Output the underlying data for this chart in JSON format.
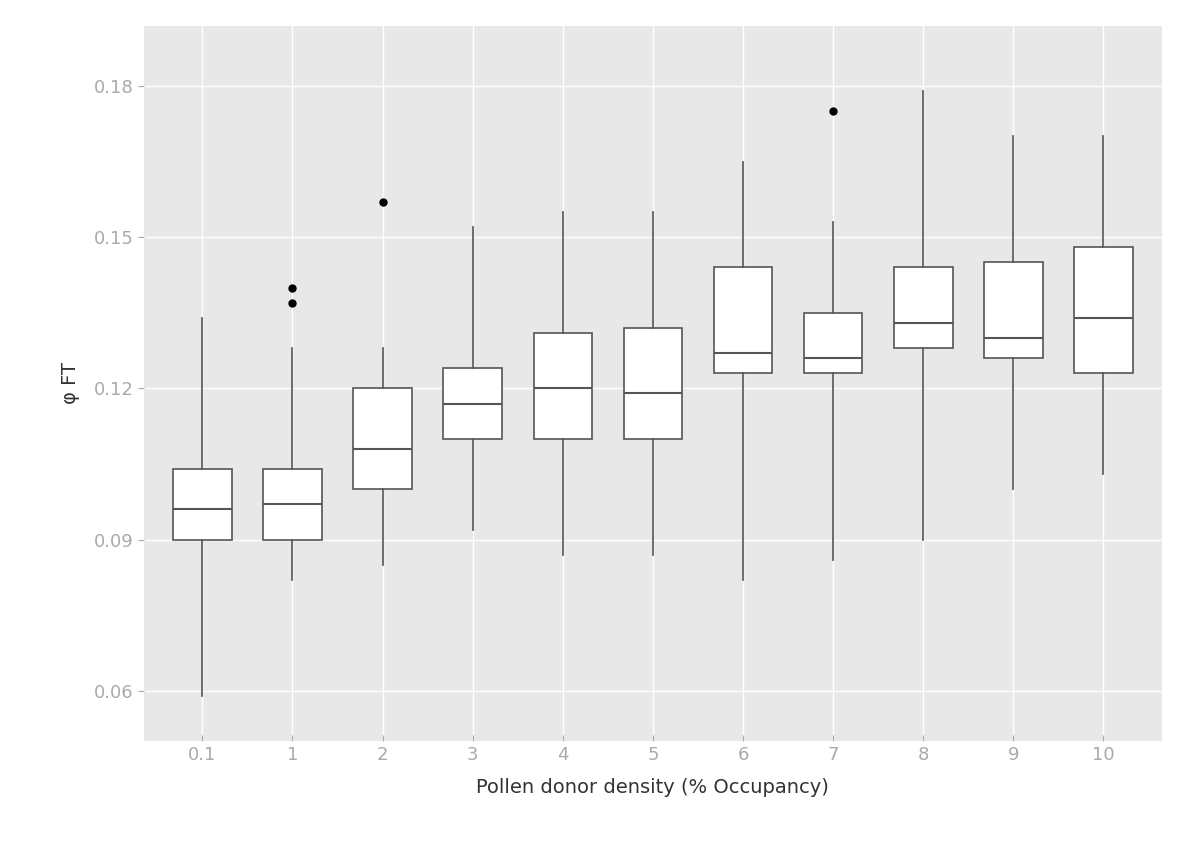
{
  "categories": [
    "0.1",
    "1",
    "2",
    "3",
    "4",
    "5",
    "6",
    "7",
    "8",
    "9",
    "10"
  ],
  "box_stats": [
    {
      "whislo": 0.059,
      "q1": 0.09,
      "med": 0.096,
      "q3": 0.104,
      "whishi": 0.134,
      "fliers": []
    },
    {
      "whislo": 0.082,
      "q1": 0.09,
      "med": 0.097,
      "q3": 0.104,
      "whishi": 0.128,
      "fliers": [
        0.14,
        0.137
      ]
    },
    {
      "whislo": 0.085,
      "q1": 0.1,
      "med": 0.108,
      "q3": 0.12,
      "whishi": 0.128,
      "fliers": [
        0.157
      ]
    },
    {
      "whislo": 0.092,
      "q1": 0.11,
      "med": 0.117,
      "q3": 0.124,
      "whishi": 0.152,
      "fliers": []
    },
    {
      "whislo": 0.087,
      "q1": 0.11,
      "med": 0.12,
      "q3": 0.131,
      "whishi": 0.155,
      "fliers": []
    },
    {
      "whislo": 0.087,
      "q1": 0.11,
      "med": 0.119,
      "q3": 0.132,
      "whishi": 0.155,
      "fliers": []
    },
    {
      "whislo": 0.082,
      "q1": 0.123,
      "med": 0.127,
      "q3": 0.144,
      "whishi": 0.165,
      "fliers": []
    },
    {
      "whislo": 0.086,
      "q1": 0.123,
      "med": 0.126,
      "q3": 0.135,
      "whishi": 0.153,
      "fliers": [
        0.175
      ]
    },
    {
      "whislo": 0.09,
      "q1": 0.128,
      "med": 0.133,
      "q3": 0.144,
      "whishi": 0.179,
      "fliers": []
    },
    {
      "whislo": 0.1,
      "q1": 0.126,
      "med": 0.13,
      "q3": 0.145,
      "whishi": 0.17,
      "fliers": []
    },
    {
      "whislo": 0.103,
      "q1": 0.123,
      "med": 0.134,
      "q3": 0.148,
      "whishi": 0.17,
      "fliers": []
    }
  ],
  "ylabel": "φ FT",
  "xlabel": "Pollen donor density (% Occupancy)",
  "ylim": [
    0.05,
    0.192
  ],
  "yticks": [
    0.06,
    0.09,
    0.12,
    0.15,
    0.18
  ],
  "bg_color": "#e8e8e8",
  "box_color": "white",
  "box_edge_color": "#555555",
  "median_color": "#555555",
  "whisker_color": "#555555",
  "flier_color": "black",
  "grid_color": "white",
  "tick_label_color": "#aaaaaa",
  "xlabel_color": "#333333",
  "ylabel_color": "#333333"
}
